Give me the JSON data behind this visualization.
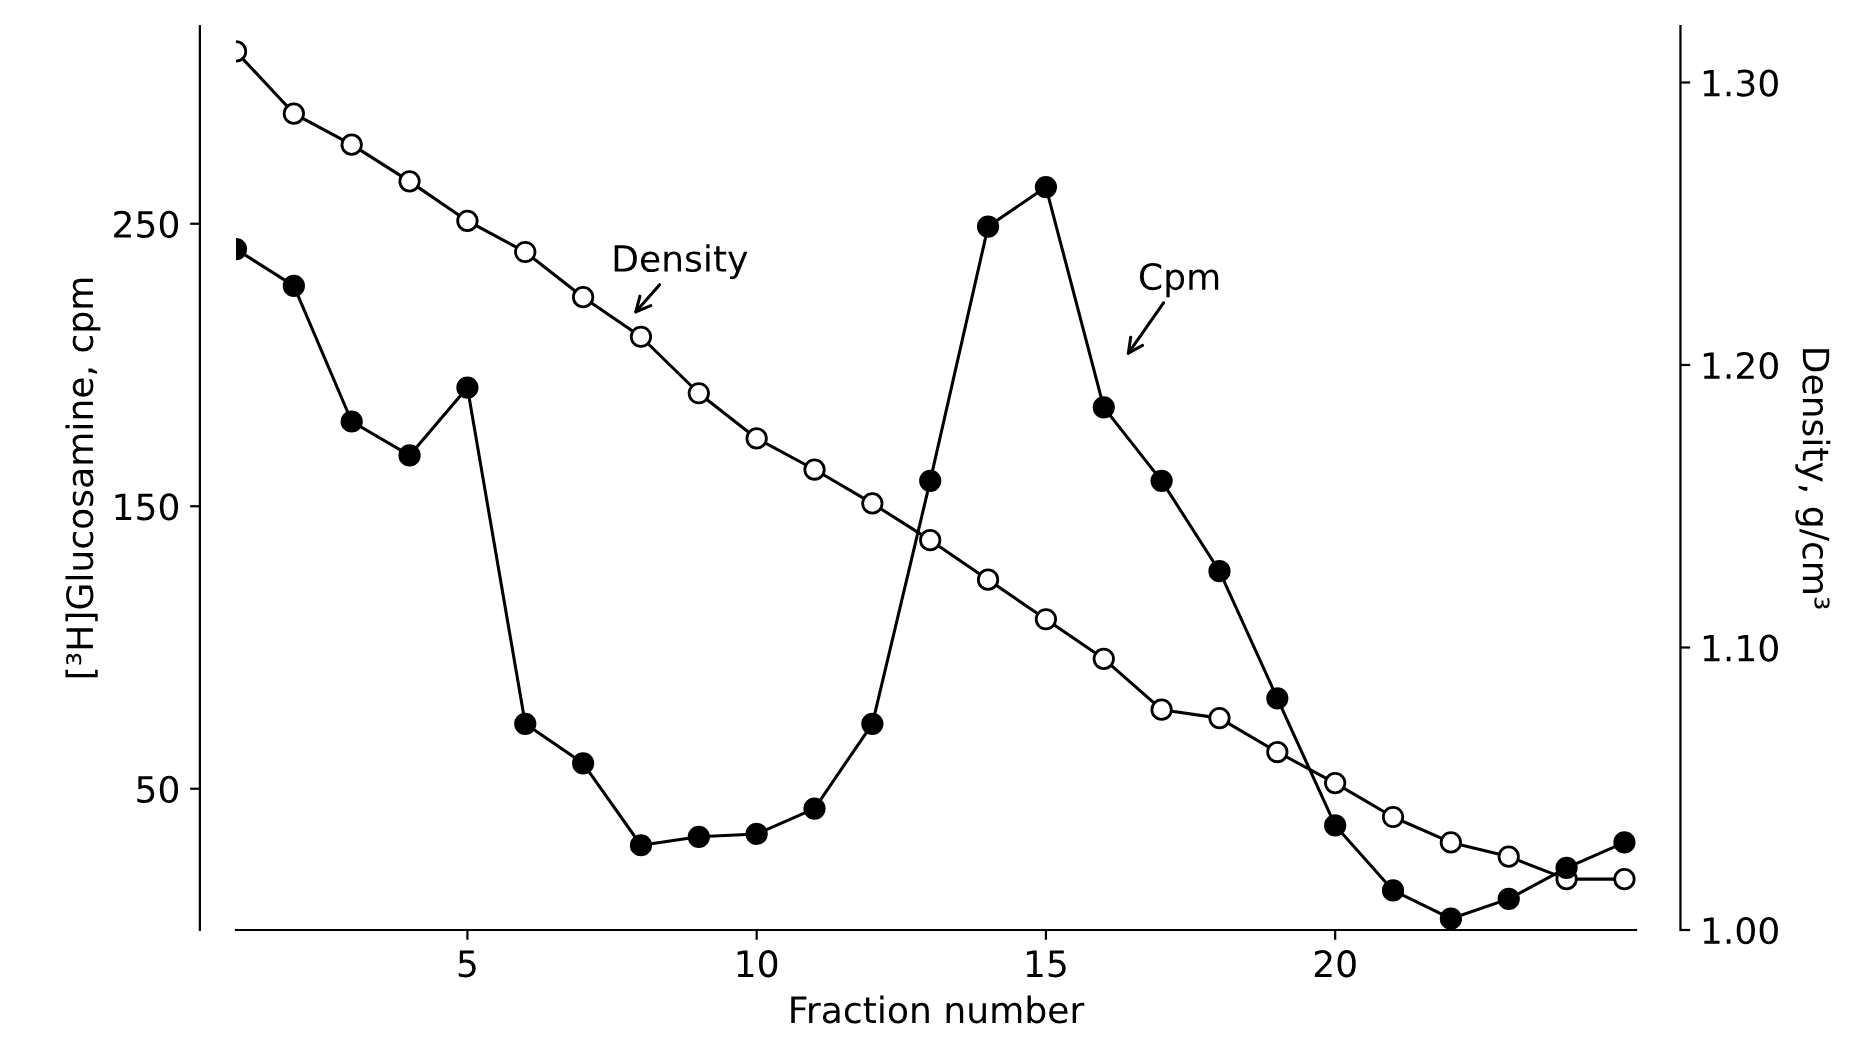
{
  "chart_data": {
    "type": "line",
    "xlabel": "Fraction number",
    "ylabel": "[³H]Glucosamine, cpm",
    "y2label": "Density, g/cm³",
    "x": [
      1,
      2,
      3,
      4,
      5,
      6,
      7,
      8,
      9,
      10,
      11,
      12,
      13,
      14,
      15,
      16,
      17,
      18,
      19,
      20,
      21,
      22,
      23,
      24,
      25
    ],
    "series": [
      {
        "color": "#000000",
        "axis": "y",
        "values": [
          241,
          228,
          180,
          168,
          192,
          73,
          59,
          30,
          33,
          34,
          43,
          73,
          159,
          249,
          263,
          185,
          159,
          127,
          82,
          37,
          14,
          4,
          11,
          22,
          31
        ]
      },
      {
        "color": "#000000",
        "axis": "y2",
        "values": [
          1.311,
          1.289,
          1.278,
          1.265,
          1.251,
          1.24,
          1.224,
          1.21,
          1.19,
          1.174,
          1.163,
          1.151,
          1.138,
          1.124,
          1.11,
          1.096,
          1.078,
          1.075,
          1.063,
          1.052,
          1.04,
          1.031,
          1.026,
          1.018,
          1.018
        ]
      }
    ],
    "annotations": [
      "Density",
      "Cpm"
    ],
    "xlim": [
      1,
      25.2
    ],
    "xticks": [
      5,
      10,
      15,
      20
    ],
    "ylim": [
      0,
      320
    ],
    "yticks": [
      50,
      150,
      250
    ],
    "y2lim": [
      1.0,
      1.32
    ],
    "y2ticks": [
      {
        "value": 1.0,
        "label": "1.00"
      },
      {
        "value": 1.1,
        "label": "1.10"
      },
      {
        "value": 1.2,
        "label": "1.20"
      },
      {
        "value": 1.3,
        "label": "1.30"
      }
    ],
    "marker": "circle",
    "line_style": "solid",
    "grid": false,
    "legend": false
  }
}
